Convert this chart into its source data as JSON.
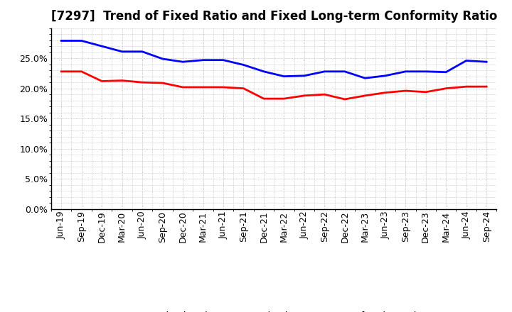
{
  "title": "[7297]  Trend of Fixed Ratio and Fixed Long-term Conformity Ratio",
  "x_labels": [
    "Jun-19",
    "Sep-19",
    "Dec-19",
    "Mar-20",
    "Jun-20",
    "Sep-20",
    "Dec-20",
    "Mar-21",
    "Jun-21",
    "Sep-21",
    "Dec-21",
    "Mar-22",
    "Jun-22",
    "Sep-22",
    "Dec-22",
    "Mar-23",
    "Jun-23",
    "Sep-23",
    "Dec-23",
    "Mar-24",
    "Jun-24",
    "Sep-24"
  ],
  "fixed_ratio": [
    0.279,
    0.279,
    0.27,
    0.261,
    0.261,
    0.249,
    0.244,
    0.247,
    0.247,
    0.239,
    0.228,
    0.22,
    0.221,
    0.228,
    0.228,
    0.217,
    0.221,
    0.228,
    0.228,
    0.227,
    0.246,
    0.244
  ],
  "fixed_lt_ratio": [
    0.228,
    0.228,
    0.212,
    0.213,
    0.21,
    0.209,
    0.202,
    0.202,
    0.202,
    0.2,
    0.183,
    0.183,
    0.188,
    0.19,
    0.182,
    0.188,
    0.193,
    0.196,
    0.194,
    0.2,
    0.203,
    0.203
  ],
  "fixed_ratio_color": "#0000FF",
  "fixed_lt_ratio_color": "#FF0000",
  "ylim": [
    0.0,
    0.3
  ],
  "yticks": [
    0.0,
    0.05,
    0.1,
    0.15,
    0.2,
    0.25
  ],
  "background_color": "#FFFFFF",
  "grid_color": "#999999",
  "legend_fixed": "Fixed Ratio",
  "legend_lt": "Fixed Long-term Conformity Ratio",
  "title_fontsize": 12,
  "tick_fontsize": 9
}
